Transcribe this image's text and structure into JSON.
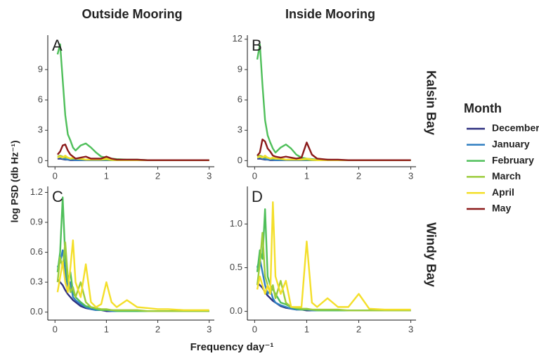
{
  "column_titles": [
    "Outside Mooring",
    "Inside Mooring"
  ],
  "row_labels": [
    "Kalsin Bay",
    "Windy Bay"
  ],
  "xlabel": "Frequency day⁻¹",
  "ylabel": "log PSD (db Hz⁻¹)",
  "legend_title": "Month",
  "chart_data": [
    {
      "type": "line",
      "panel_label": "A",
      "x": [
        0.05,
        0.1,
        0.15,
        0.2,
        0.25,
        0.3,
        0.35,
        0.4,
        0.5,
        0.6,
        0.7,
        0.8,
        0.9,
        1.0,
        1.1,
        1.2,
        1.4,
        1.6,
        1.8,
        2.0,
        2.2,
        2.5,
        2.8,
        3.0
      ],
      "xlim": [
        -0.14,
        3.1
      ],
      "xticks": [
        0,
        1,
        2,
        3
      ],
      "ylim": [
        -0.6,
        12.4
      ],
      "yticks": [
        0,
        3,
        6,
        9
      ],
      "series": [
        {
          "name": "December",
          "color": "#2e2f7f",
          "values": [
            0.2,
            0.2,
            0.15,
            0.1,
            0.1,
            0.05,
            0.05,
            0.05,
            0.05,
            0.05,
            0.05,
            0.05,
            0.05,
            0.05,
            0.05,
            0.05,
            0.05,
            0.05,
            0.05,
            0.05,
            0.05,
            0.05,
            0.05,
            0.05
          ]
        },
        {
          "name": "January",
          "color": "#2f7ec1",
          "values": [
            0.3,
            0.3,
            0.2,
            0.15,
            0.1,
            0.1,
            0.1,
            0.05,
            0.05,
            0.05,
            0.05,
            0.05,
            0.05,
            0.05,
            0.05,
            0.05,
            0.05,
            0.05,
            0.05,
            0.05,
            0.05,
            0.05,
            0.05,
            0.05
          ]
        },
        {
          "name": "February",
          "color": "#4fbf5a",
          "values": [
            10.5,
            11.5,
            8.0,
            4.5,
            2.6,
            2.0,
            1.3,
            1.0,
            1.5,
            1.7,
            1.3,
            0.8,
            0.4,
            0.3,
            0.2,
            0.15,
            0.1,
            0.1,
            0.05,
            0.05,
            0.05,
            0.05,
            0.05,
            0.05
          ]
        },
        {
          "name": "March",
          "color": "#9ccc3c",
          "values": [
            0.4,
            0.5,
            0.4,
            0.3,
            0.3,
            0.2,
            0.2,
            0.2,
            0.15,
            0.1,
            0.1,
            0.1,
            0.1,
            0.1,
            0.05,
            0.05,
            0.05,
            0.05,
            0.05,
            0.05,
            0.05,
            0.05,
            0.05,
            0.05
          ]
        },
        {
          "name": "April",
          "color": "#f4df2a",
          "values": [
            0.3,
            0.4,
            0.3,
            0.5,
            0.3,
            0.2,
            0.3,
            0.2,
            0.2,
            0.1,
            0.1,
            0.1,
            0.1,
            0.2,
            0.1,
            0.05,
            0.05,
            0.05,
            0.05,
            0.05,
            0.05,
            0.05,
            0.05,
            0.05
          ]
        },
        {
          "name": "May",
          "color": "#8b1a1a",
          "values": [
            0.6,
            0.9,
            1.5,
            1.6,
            1.0,
            0.6,
            0.4,
            0.2,
            0.3,
            0.4,
            0.2,
            0.2,
            0.2,
            0.4,
            0.2,
            0.1,
            0.1,
            0.1,
            0.05,
            0.05,
            0.05,
            0.05,
            0.05,
            0.05
          ]
        }
      ]
    },
    {
      "type": "line",
      "panel_label": "B",
      "x": [
        0.05,
        0.1,
        0.15,
        0.2,
        0.25,
        0.3,
        0.35,
        0.4,
        0.5,
        0.6,
        0.7,
        0.8,
        0.9,
        1.0,
        1.1,
        1.2,
        1.4,
        1.6,
        1.8,
        2.0,
        2.2,
        2.5,
        2.8,
        3.0
      ],
      "xlim": [
        -0.14,
        3.1
      ],
      "xticks": [
        0,
        1,
        2,
        3
      ],
      "ylim": [
        -0.6,
        12.4
      ],
      "yticks": [
        0,
        3,
        6,
        9,
        12
      ],
      "series": [
        {
          "name": "December",
          "color": "#2e2f7f",
          "values": [
            0.2,
            0.2,
            0.15,
            0.1,
            0.1,
            0.05,
            0.05,
            0.05,
            0.05,
            0.05,
            0.05,
            0.05,
            0.05,
            0.05,
            0.05,
            0.05,
            0.05,
            0.05,
            0.05,
            0.05,
            0.05,
            0.05,
            0.05,
            0.05
          ]
        },
        {
          "name": "January",
          "color": "#2f7ec1",
          "values": [
            0.3,
            0.3,
            0.2,
            0.15,
            0.1,
            0.1,
            0.1,
            0.05,
            0.05,
            0.05,
            0.05,
            0.05,
            0.05,
            0.05,
            0.05,
            0.05,
            0.05,
            0.05,
            0.05,
            0.05,
            0.05,
            0.05,
            0.05,
            0.05
          ]
        },
        {
          "name": "February",
          "color": "#4fbf5a",
          "values": [
            10.0,
            11.5,
            7.5,
            4.0,
            2.5,
            1.8,
            1.2,
            0.8,
            1.3,
            1.6,
            1.2,
            0.6,
            0.3,
            0.2,
            0.15,
            0.1,
            0.1,
            0.05,
            0.05,
            0.05,
            0.05,
            0.05,
            0.05,
            0.05
          ]
        },
        {
          "name": "March",
          "color": "#9ccc3c",
          "values": [
            0.4,
            0.5,
            0.4,
            0.3,
            0.3,
            0.2,
            0.2,
            0.2,
            0.15,
            0.1,
            0.1,
            0.1,
            0.1,
            0.1,
            0.05,
            0.05,
            0.05,
            0.05,
            0.05,
            0.05,
            0.05,
            0.05,
            0.05,
            0.05
          ]
        },
        {
          "name": "April",
          "color": "#f4df2a",
          "values": [
            0.3,
            0.4,
            0.3,
            0.5,
            0.3,
            0.2,
            0.3,
            0.2,
            0.2,
            0.1,
            0.1,
            0.1,
            0.1,
            0.2,
            0.1,
            0.05,
            0.05,
            0.05,
            0.05,
            0.05,
            0.05,
            0.05,
            0.05,
            0.05
          ]
        },
        {
          "name": "May",
          "color": "#8b1a1a",
          "values": [
            0.5,
            0.8,
            2.1,
            1.9,
            1.2,
            0.9,
            0.5,
            0.4,
            0.3,
            0.4,
            0.3,
            0.2,
            0.3,
            1.8,
            0.6,
            0.2,
            0.1,
            0.1,
            0.05,
            0.05,
            0.05,
            0.05,
            0.05,
            0.05
          ]
        }
      ]
    },
    {
      "type": "line",
      "panel_label": "C",
      "x": [
        0.05,
        0.1,
        0.15,
        0.2,
        0.25,
        0.3,
        0.35,
        0.4,
        0.5,
        0.6,
        0.7,
        0.8,
        0.9,
        1.0,
        1.1,
        1.2,
        1.4,
        1.6,
        1.8,
        2.0,
        2.2,
        2.5,
        2.8,
        3.0
      ],
      "xlim": [
        -0.14,
        3.1
      ],
      "xticks": [
        0,
        1,
        2,
        3
      ],
      "ylim": [
        -0.08,
        1.26
      ],
      "yticks": [
        {
          "value": 0,
          "label": "0.0"
        },
        0.3,
        0.6,
        0.9,
        1.2
      ],
      "series": [
        {
          "name": "December",
          "color": "#2e2f7f",
          "values": [
            0.33,
            0.3,
            0.27,
            0.22,
            0.18,
            0.15,
            0.12,
            0.1,
            0.06,
            0.04,
            0.03,
            0.02,
            0.02,
            0.01,
            0.01,
            0.01,
            0.01,
            0.01,
            0.01,
            0.01,
            0.01,
            0.01,
            0.01,
            0.01
          ]
        },
        {
          "name": "January",
          "color": "#2f7ec1",
          "values": [
            0.45,
            0.5,
            0.62,
            0.4,
            0.25,
            0.3,
            0.15,
            0.12,
            0.08,
            0.05,
            0.03,
            0.02,
            0.02,
            0.02,
            0.01,
            0.01,
            0.01,
            0.01,
            0.01,
            0.01,
            0.01,
            0.01,
            0.01,
            0.01
          ]
        },
        {
          "name": "February",
          "color": "#4fbf5a",
          "values": [
            0.4,
            0.6,
            1.15,
            0.55,
            0.3,
            0.4,
            0.2,
            0.15,
            0.1,
            0.06,
            0.05,
            0.03,
            0.02,
            0.02,
            0.02,
            0.01,
            0.01,
            0.01,
            0.01,
            0.01,
            0.01,
            0.01,
            0.01,
            0.01
          ]
        },
        {
          "name": "March",
          "color": "#9ccc3c",
          "values": [
            0.3,
            0.55,
            0.45,
            0.7,
            0.35,
            0.2,
            0.25,
            0.15,
            0.3,
            0.1,
            0.05,
            0.04,
            0.03,
            0.03,
            0.02,
            0.02,
            0.02,
            0.02,
            0.01,
            0.01,
            0.01,
            0.01,
            0.01,
            0.01
          ]
        },
        {
          "name": "April",
          "color": "#f4df2a",
          "values": [
            0.2,
            0.35,
            0.5,
            0.3,
            0.2,
            0.45,
            0.72,
            0.3,
            0.15,
            0.48,
            0.1,
            0.05,
            0.08,
            0.3,
            0.1,
            0.05,
            0.12,
            0.05,
            0.04,
            0.03,
            0.03,
            0.02,
            0.02,
            0.02
          ]
        }
      ]
    },
    {
      "type": "line",
      "panel_label": "D",
      "x": [
        0.05,
        0.1,
        0.15,
        0.2,
        0.25,
        0.3,
        0.35,
        0.4,
        0.5,
        0.6,
        0.7,
        0.8,
        0.9,
        1.0,
        1.1,
        1.2,
        1.4,
        1.6,
        1.8,
        2.0,
        2.2,
        2.5,
        2.8,
        3.0
      ],
      "xlim": [
        -0.14,
        3.1
      ],
      "xticks": [
        0,
        1,
        2,
        3
      ],
      "ylim": [
        -0.1,
        1.43
      ],
      "yticks": [
        {
          "value": 0,
          "label": "0.0"
        },
        0.5,
        {
          "value": 1,
          "label": "1.0"
        }
      ],
      "series": [
        {
          "name": "December",
          "color": "#2e2f7f",
          "values": [
            0.33,
            0.3,
            0.27,
            0.22,
            0.18,
            0.15,
            0.12,
            0.1,
            0.06,
            0.04,
            0.03,
            0.02,
            0.02,
            0.01,
            0.01,
            0.01,
            0.01,
            0.01,
            0.01,
            0.01,
            0.01,
            0.01,
            0.01,
            0.01
          ]
        },
        {
          "name": "January",
          "color": "#2f7ec1",
          "values": [
            0.5,
            0.6,
            0.45,
            0.3,
            0.2,
            0.25,
            0.15,
            0.1,
            0.07,
            0.05,
            0.03,
            0.02,
            0.02,
            0.02,
            0.01,
            0.01,
            0.01,
            0.01,
            0.01,
            0.01,
            0.01,
            0.01,
            0.01,
            0.01
          ]
        },
        {
          "name": "February",
          "color": "#4fbf5a",
          "values": [
            0.45,
            0.7,
            0.6,
            1.17,
            0.4,
            0.3,
            0.25,
            0.2,
            0.1,
            0.08,
            0.05,
            0.03,
            0.02,
            0.02,
            0.02,
            0.01,
            0.01,
            0.01,
            0.01,
            0.01,
            0.01,
            0.01,
            0.01,
            0.01
          ]
        },
        {
          "name": "March",
          "color": "#9ccc3c",
          "values": [
            0.3,
            0.55,
            0.9,
            0.4,
            0.3,
            0.2,
            0.3,
            0.15,
            0.35,
            0.1,
            0.05,
            0.04,
            0.03,
            0.03,
            0.02,
            0.02,
            0.02,
            0.02,
            0.01,
            0.01,
            0.01,
            0.01,
            0.01,
            0.01
          ]
        },
        {
          "name": "April",
          "color": "#f4df2a",
          "values": [
            0.25,
            0.4,
            0.3,
            0.2,
            0.3,
            0.2,
            1.25,
            0.4,
            0.2,
            0.35,
            0.05,
            0.05,
            0.05,
            0.8,
            0.1,
            0.05,
            0.15,
            0.05,
            0.05,
            0.2,
            0.03,
            0.02,
            0.02,
            0.02
          ]
        }
      ]
    }
  ]
}
